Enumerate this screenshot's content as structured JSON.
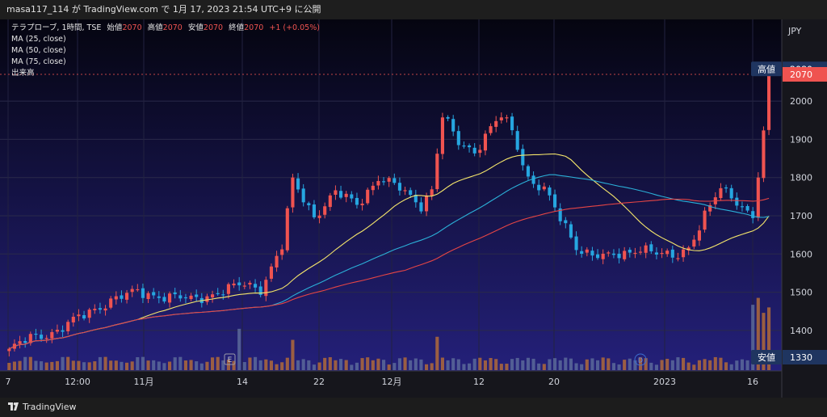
{
  "header": {
    "text": "masa117_114 が TradingView.com で 1月 17, 2023 21:54 UTC+9 に公開"
  },
  "legend": {
    "symbol": "テラプローブ, 1時間, TSE",
    "open_label": "始値",
    "open_value": "2070",
    "high_label": "高値",
    "high_value": "2070",
    "low_label": "安値",
    "low_value": "2070",
    "close_label": "終値",
    "close_value": "2070",
    "change": "+1 (+0.05%)",
    "ma25": "MA (25, close)",
    "ma50": "MA (50, close)",
    "ma75": "MA (75, close)",
    "volume": "出来高"
  },
  "currency": "JPY",
  "markers": {
    "high_tag": "高値",
    "high_value": "2080",
    "last_value": "2070",
    "low_tag": "安値",
    "low_value": "1330",
    "earnings": "E",
    "dividend": "D"
  },
  "footer": {
    "brand": "TradingView"
  },
  "colors": {
    "up": "#ef5350",
    "down": "#26a6e0",
    "ma25": "#f5e66b",
    "ma50": "#2bb0d8",
    "ma75": "#e64545",
    "bg_top": "#050510",
    "bg_bottom": "#24207a"
  },
  "chart_data": {
    "type": "candlestick",
    "title": "テラプローブ, 1時間, TSE",
    "x_tick_labels": [
      "7",
      "12:00",
      "11月",
      "14",
      "22",
      "12月",
      "12",
      "20",
      "2023",
      "16"
    ],
    "y_tick_labels": [
      "1400",
      "1500",
      "1600",
      "1700",
      "1800",
      "1900",
      "2000"
    ],
    "ylim": [
      1310,
      2105
    ],
    "price_path": [
      [
        0,
        1340
      ],
      [
        5,
        1380
      ],
      [
        10,
        1400
      ],
      [
        15,
        1440
      ],
      [
        20,
        1480
      ],
      [
        25,
        1500
      ],
      [
        30,
        1490
      ],
      [
        35,
        1480
      ],
      [
        40,
        1500
      ],
      [
        45,
        1520
      ],
      [
        48,
        1510
      ],
      [
        52,
        1620
      ],
      [
        54,
        1790
      ],
      [
        58,
        1700
      ],
      [
        62,
        1760
      ],
      [
        66,
        1730
      ],
      [
        70,
        1800
      ],
      [
        74,
        1770
      ],
      [
        78,
        1730
      ],
      [
        80,
        1770
      ],
      [
        82,
        1960
      ],
      [
        85,
        1890
      ],
      [
        88,
        1870
      ],
      [
        91,
        1930
      ],
      [
        93,
        1960
      ],
      [
        95,
        1920
      ],
      [
        98,
        1800
      ],
      [
        101,
        1770
      ],
      [
        104,
        1690
      ],
      [
        107,
        1620
      ],
      [
        110,
        1600
      ],
      [
        113,
        1590
      ],
      [
        116,
        1600
      ],
      [
        119,
        1620
      ],
      [
        122,
        1600
      ],
      [
        125,
        1590
      ],
      [
        128,
        1620
      ],
      [
        131,
        1700
      ],
      [
        134,
        1770
      ],
      [
        137,
        1740
      ],
      [
        140,
        1700
      ],
      [
        141.5,
        1850
      ],
      [
        143,
        2070
      ]
    ],
    "candle_count": 143,
    "moving_averages": [
      {
        "name": "MA (25, close)",
        "period": 25
      },
      {
        "name": "MA (50, close)",
        "period": 50
      },
      {
        "name": "MA (75, close)",
        "period": 75
      }
    ],
    "volume_pattern": {
      "baseline": "low",
      "spikes_at_candles": [
        44,
        54,
        81,
        140,
        141,
        142,
        143
      ]
    },
    "last_price": 2070,
    "high": 2080,
    "low": 1330,
    "grid": true
  }
}
